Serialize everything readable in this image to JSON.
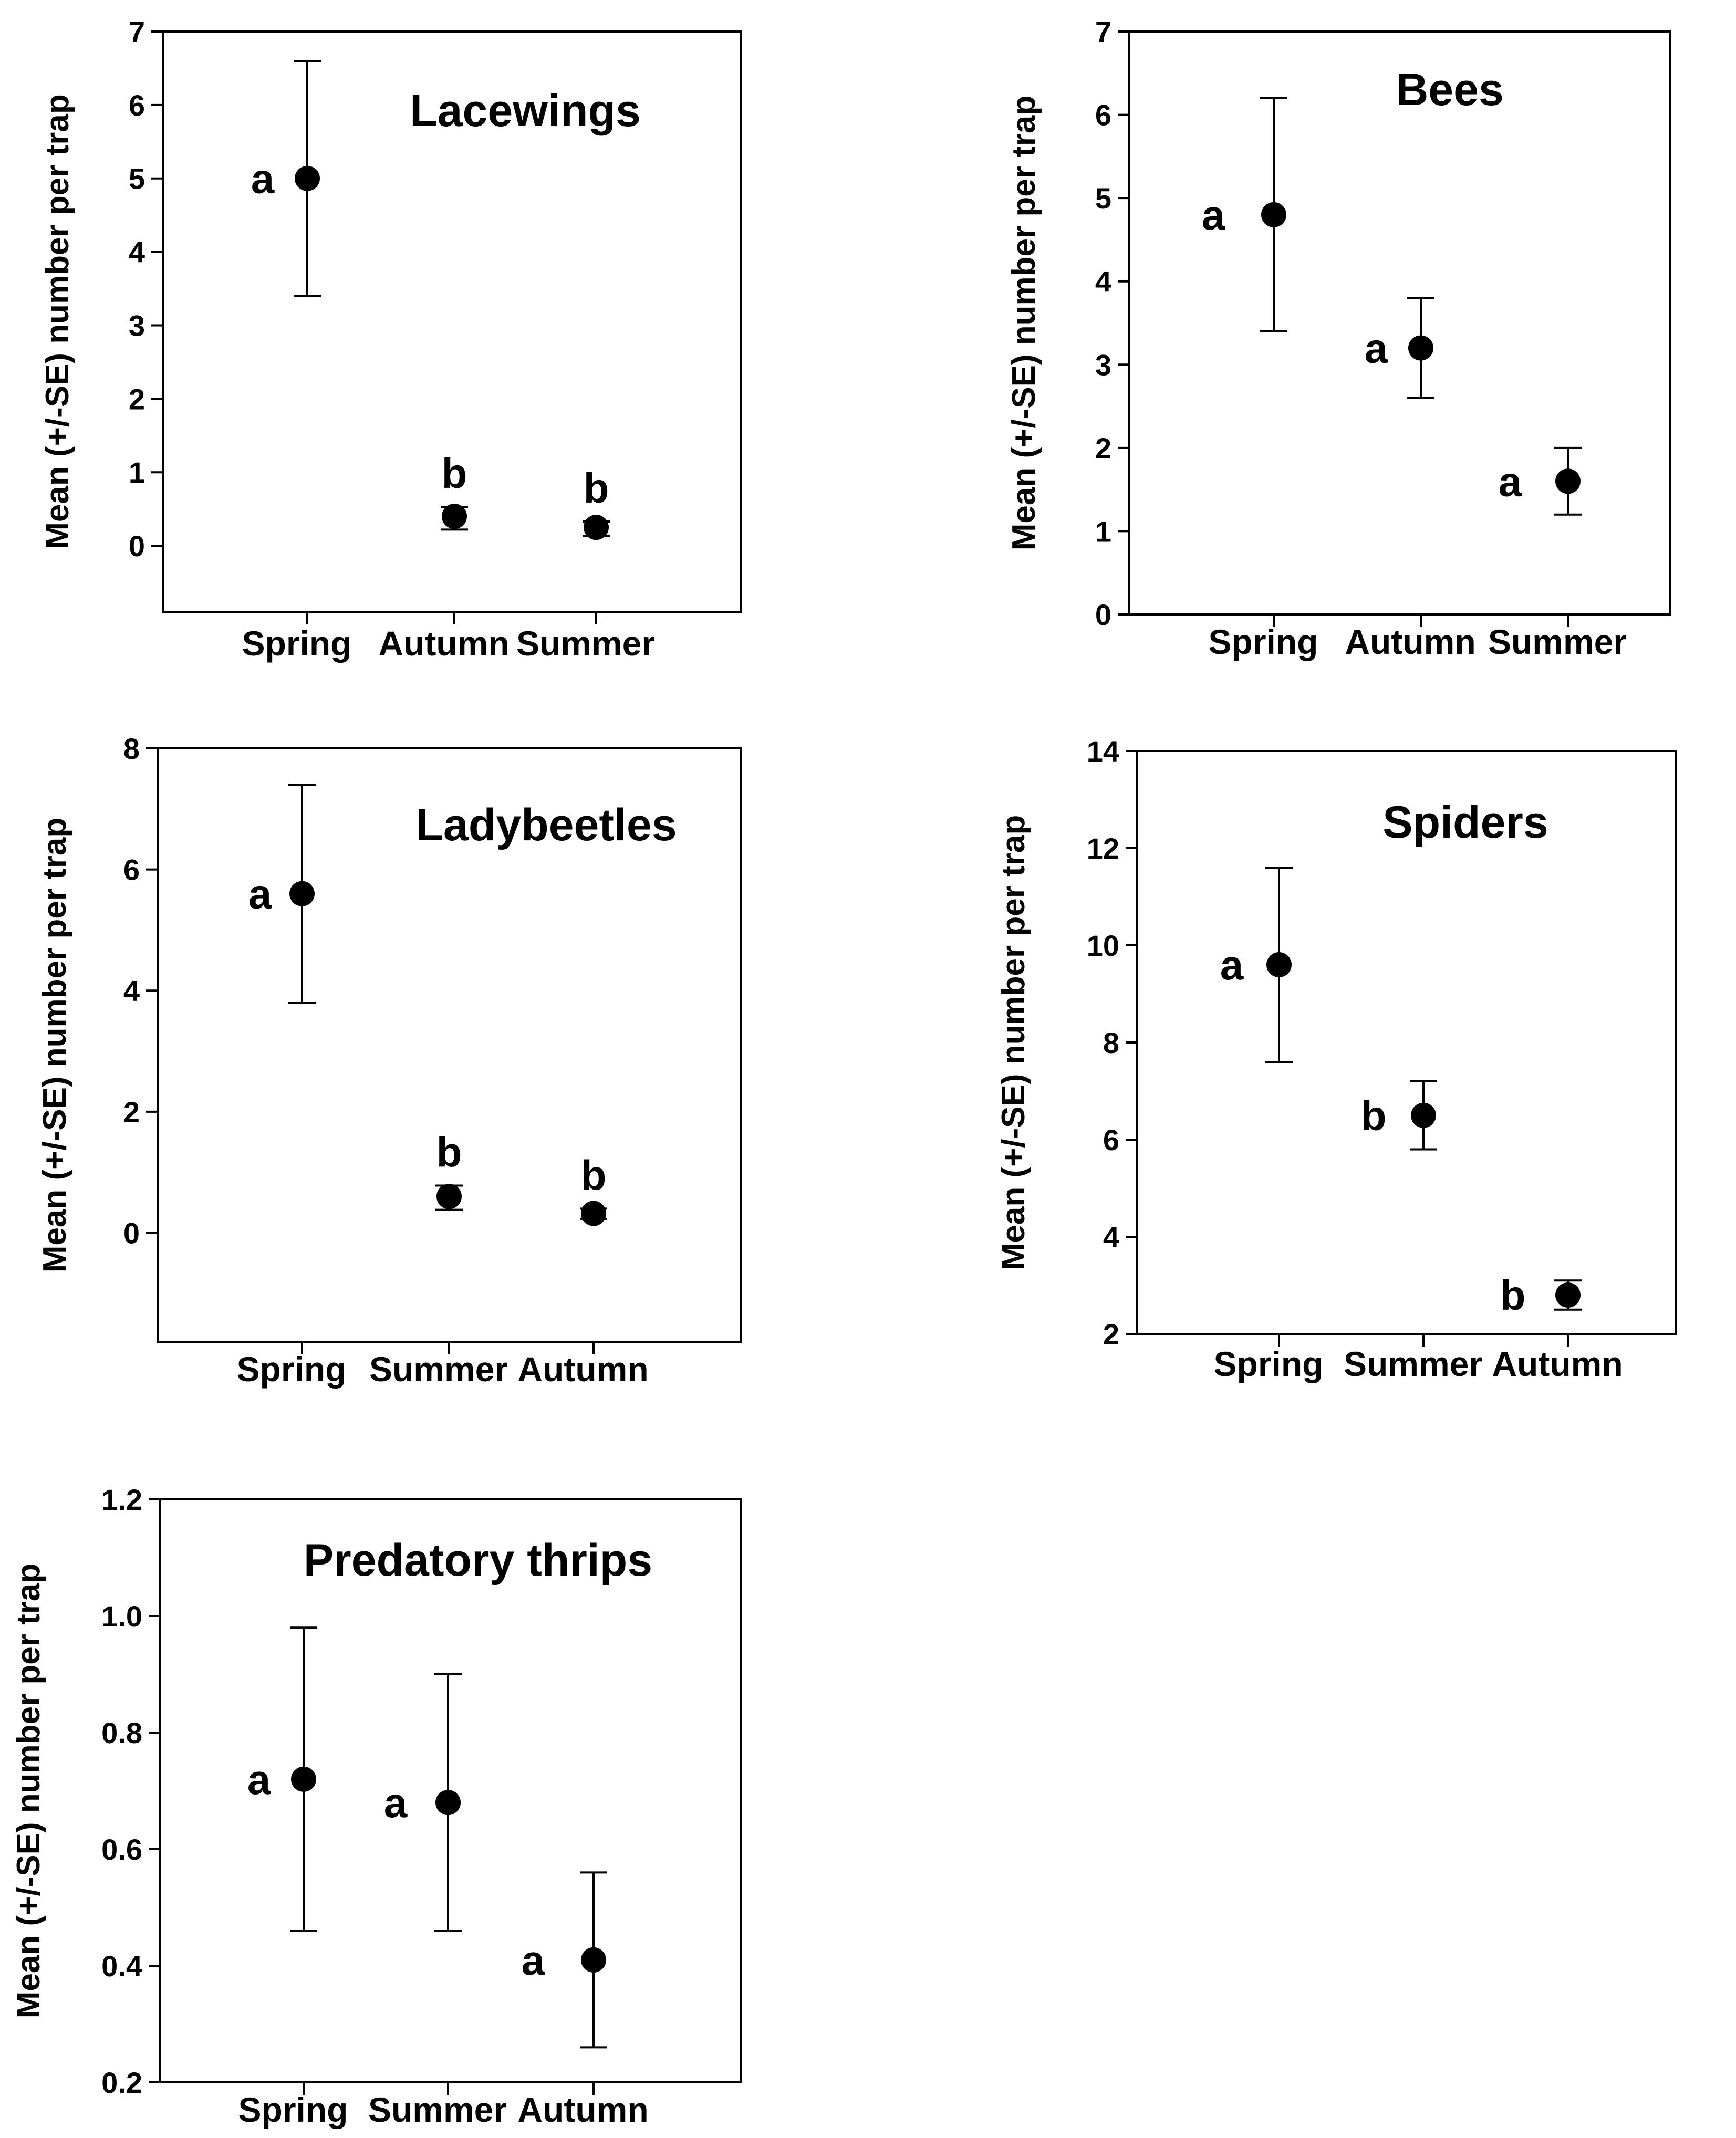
{
  "chart_data": [
    {
      "type": "scatter",
      "title": "Lacewings",
      "ylabel": "Mean (+/-SE) number per trap",
      "xlabel": "",
      "categories": [
        "Spring",
        "Autumn",
        "Summer"
      ],
      "values": [
        5.0,
        0.4,
        0.25
      ],
      "error_low": [
        3.4,
        0.22,
        0.13
      ],
      "error_high": [
        6.6,
        0.53,
        0.33
      ],
      "letters": [
        "a",
        "b",
        "b"
      ],
      "ylim": [
        -0.9,
        7
      ],
      "yticks": [
        0,
        1,
        2,
        3,
        4,
        5,
        6,
        7
      ],
      "ytick_labels": [
        "0",
        "1",
        "2",
        "3",
        "4",
        "5",
        "6",
        "7"
      ]
    },
    {
      "type": "scatter",
      "title": "Bees",
      "ylabel": "Mean (+/-SE) number per trap",
      "xlabel": "",
      "categories": [
        "Spring",
        "Autumn",
        "Summer"
      ],
      "values": [
        4.8,
        3.2,
        1.6
      ],
      "error_low": [
        3.4,
        2.6,
        1.2
      ],
      "error_high": [
        6.2,
        3.8,
        2.0
      ],
      "letters": [
        "a",
        "a",
        "a"
      ],
      "ylim": [
        0,
        7
      ],
      "yticks": [
        0,
        1,
        2,
        3,
        4,
        5,
        6,
        7
      ],
      "ytick_labels": [
        "0",
        "1",
        "2",
        "3",
        "4",
        "5",
        "6",
        "7"
      ]
    },
    {
      "type": "scatter",
      "title": "Ladybeetles",
      "ylabel": "Mean (+/-SE) number per trap",
      "xlabel": "",
      "categories": [
        "Spring",
        "Summer",
        "Autumn"
      ],
      "values": [
        5.6,
        0.6,
        0.32
      ],
      "error_low": [
        3.8,
        0.38,
        0.23
      ],
      "error_high": [
        7.4,
        0.78,
        0.4
      ],
      "letters": [
        "a",
        "b",
        "b"
      ],
      "ylim": [
        -1.8,
        8
      ],
      "yticks": [
        0,
        2,
        4,
        6,
        8
      ],
      "ytick_labels": [
        "0",
        "2",
        "4",
        "6",
        "8"
      ]
    },
    {
      "type": "scatter",
      "title": "Spiders",
      "ylabel": "Mean (+/-SE) number per trap",
      "xlabel": "",
      "categories": [
        "Spring",
        "Summer",
        "Autumn"
      ],
      "values": [
        9.6,
        6.5,
        2.8
      ],
      "error_low": [
        7.6,
        5.8,
        2.5
      ],
      "error_high": [
        11.6,
        7.2,
        3.1
      ],
      "letters": [
        "a",
        "b",
        "b"
      ],
      "ylim": [
        2,
        14
      ],
      "yticks": [
        2,
        4,
        6,
        8,
        10,
        12,
        14
      ],
      "ytick_labels": [
        "2",
        "4",
        "6",
        "8",
        "10",
        "12",
        "14"
      ]
    },
    {
      "type": "scatter",
      "title": "Predatory thrips",
      "ylabel": "Mean (+/-SE) number per trap",
      "xlabel": "",
      "categories": [
        "Spring",
        "Summer",
        "Autumn"
      ],
      "values": [
        0.72,
        0.68,
        0.41
      ],
      "error_low": [
        0.46,
        0.46,
        0.26
      ],
      "error_high": [
        0.98,
        0.9,
        0.56
      ],
      "letters": [
        "a",
        "a",
        "a"
      ],
      "ylim": [
        0.2,
        1.2
      ],
      "yticks": [
        0.2,
        0.4,
        0.6,
        0.8,
        1.0,
        1.2
      ],
      "ytick_labels": [
        "0.2",
        "0.4",
        "0.6",
        "0.8",
        "1.0",
        "1.2"
      ]
    }
  ]
}
